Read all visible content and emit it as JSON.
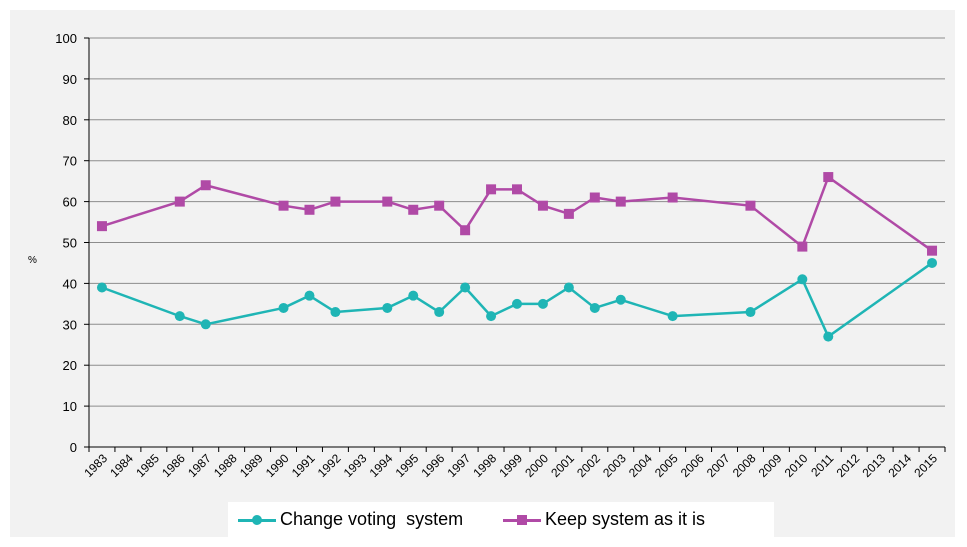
{
  "chart_data": {
    "type": "line",
    "title": "",
    "xlabel": "",
    "ylabel": "%",
    "ylim": [
      0,
      100
    ],
    "yticks": [
      0,
      10,
      20,
      30,
      40,
      50,
      60,
      70,
      80,
      90,
      100
    ],
    "categories": [
      "1983",
      "1984",
      "1985",
      "1986",
      "1987",
      "1988",
      "1989",
      "1990",
      "1991",
      "1992",
      "1993",
      "1994",
      "1995",
      "1996",
      "1997",
      "1998",
      "1999",
      "2000",
      "2001",
      "2002",
      "2003",
      "2004",
      "2005",
      "2006",
      "2007",
      "2008",
      "2009",
      "2010",
      "2011",
      "2012",
      "2013",
      "2014",
      "2015"
    ],
    "grid": true,
    "legend_position": "bottom",
    "series": [
      {
        "name": "Change voting  system",
        "color": "#1fb5b5",
        "marker": "circle",
        "points": [
          {
            "x": "1983",
            "y": 39
          },
          {
            "x": "1986",
            "y": 32
          },
          {
            "x": "1987",
            "y": 30
          },
          {
            "x": "1990",
            "y": 34
          },
          {
            "x": "1991",
            "y": 37
          },
          {
            "x": "1992",
            "y": 33
          },
          {
            "x": "1994",
            "y": 34
          },
          {
            "x": "1995",
            "y": 37
          },
          {
            "x": "1996",
            "y": 33
          },
          {
            "x": "1997",
            "y": 39
          },
          {
            "x": "1998",
            "y": 32
          },
          {
            "x": "1999",
            "y": 35
          },
          {
            "x": "2000",
            "y": 35
          },
          {
            "x": "2001",
            "y": 39
          },
          {
            "x": "2002",
            "y": 34
          },
          {
            "x": "2003",
            "y": 36
          },
          {
            "x": "2005",
            "y": 32
          },
          {
            "x": "2008",
            "y": 33
          },
          {
            "x": "2010",
            "y": 41
          },
          {
            "x": "2011",
            "y": 27
          },
          {
            "x": "2015",
            "y": 45
          }
        ]
      },
      {
        "name": "Keep system as it is",
        "color": "#b04aa6",
        "marker": "square",
        "points": [
          {
            "x": "1983",
            "y": 54
          },
          {
            "x": "1986",
            "y": 60
          },
          {
            "x": "1987",
            "y": 64
          },
          {
            "x": "1990",
            "y": 59
          },
          {
            "x": "1991",
            "y": 58
          },
          {
            "x": "1992",
            "y": 60
          },
          {
            "x": "1994",
            "y": 60
          },
          {
            "x": "1995",
            "y": 58
          },
          {
            "x": "1996",
            "y": 59
          },
          {
            "x": "1997",
            "y": 53
          },
          {
            "x": "1998",
            "y": 63
          },
          {
            "x": "1999",
            "y": 63
          },
          {
            "x": "2000",
            "y": 59
          },
          {
            "x": "2001",
            "y": 57
          },
          {
            "x": "2002",
            "y": 61
          },
          {
            "x": "2003",
            "y": 60
          },
          {
            "x": "2005",
            "y": 61
          },
          {
            "x": "2008",
            "y": 59
          },
          {
            "x": "2010",
            "y": 49
          },
          {
            "x": "2011",
            "y": 66
          },
          {
            "x": "2015",
            "y": 48
          }
        ]
      }
    ]
  }
}
